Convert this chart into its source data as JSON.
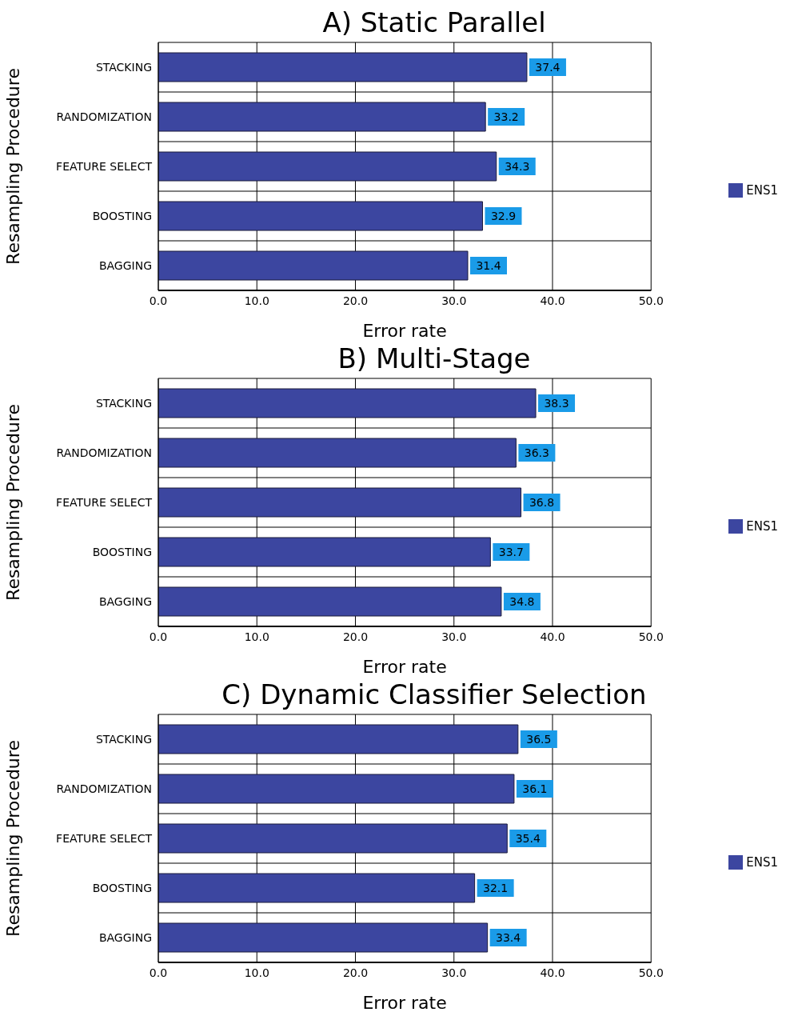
{
  "chart_data": [
    {
      "type": "bar",
      "orientation": "horizontal",
      "title": "A) Static Parallel",
      "xlabel": "Error rate",
      "ylabel": "Resampling Procedure",
      "categories": [
        "STACKING",
        "RANDOMIZATION",
        "FEATURE SELECT",
        "BOOSTING",
        "BAGGING"
      ],
      "series": [
        {
          "name": "ENS1",
          "color": "#3c46a0",
          "values": [
            37.4,
            33.2,
            34.3,
            32.9,
            31.4
          ]
        }
      ],
      "xlim": [
        0,
        50
      ],
      "xticks": [
        {
          "value": 0,
          "label": "0.0"
        },
        {
          "value": 10,
          "label": "10.0"
        },
        {
          "value": 20,
          "label": "20.0"
        },
        {
          "value": 30,
          "label": "30.0"
        },
        {
          "value": 40,
          "label": "40.0"
        },
        {
          "value": 50,
          "label": "50.0"
        }
      ],
      "grid": true,
      "legend": "right",
      "data_labels": true
    },
    {
      "type": "bar",
      "orientation": "horizontal",
      "title": "B) Multi-Stage",
      "xlabel": "Error rate",
      "ylabel": "Resampling Procedure",
      "categories": [
        "STACKING",
        "RANDOMIZATION",
        "FEATURE SELECT",
        "BOOSTING",
        "BAGGING"
      ],
      "series": [
        {
          "name": "ENS1",
          "color": "#3c46a0",
          "values": [
            38.3,
            36.3,
            36.8,
            33.7,
            34.8
          ]
        }
      ],
      "xlim": [
        0,
        50
      ],
      "xticks": [
        {
          "value": 0,
          "label": "0.0"
        },
        {
          "value": 10,
          "label": "10.0"
        },
        {
          "value": 20,
          "label": "20.0"
        },
        {
          "value": 30,
          "label": "30.0"
        },
        {
          "value": 40,
          "label": "40.0"
        },
        {
          "value": 50,
          "label": "50.0"
        }
      ],
      "grid": true,
      "legend": "right",
      "data_labels": true
    },
    {
      "type": "bar",
      "orientation": "horizontal",
      "title": "C) Dynamic Classifier Selection",
      "xlabel": "Error rate",
      "ylabel": "Resampling Procedure",
      "categories": [
        "STACKING",
        "RANDOMIZATION",
        "FEATURE SELECT",
        "BOOSTING",
        "BAGGING"
      ],
      "series": [
        {
          "name": "ENS1",
          "color": "#3c46a0",
          "values": [
            36.5,
            36.1,
            35.4,
            32.1,
            33.4
          ]
        }
      ],
      "xlim": [
        0,
        50
      ],
      "xticks": [
        {
          "value": 0,
          "label": "0.0"
        },
        {
          "value": 10,
          "label": "10.0"
        },
        {
          "value": 20,
          "label": "20.0"
        },
        {
          "value": 30,
          "label": "30.0"
        },
        {
          "value": 40,
          "label": "40.0"
        },
        {
          "value": 50,
          "label": "50.0"
        }
      ],
      "grid": true,
      "legend": "right",
      "data_labels": true
    }
  ]
}
